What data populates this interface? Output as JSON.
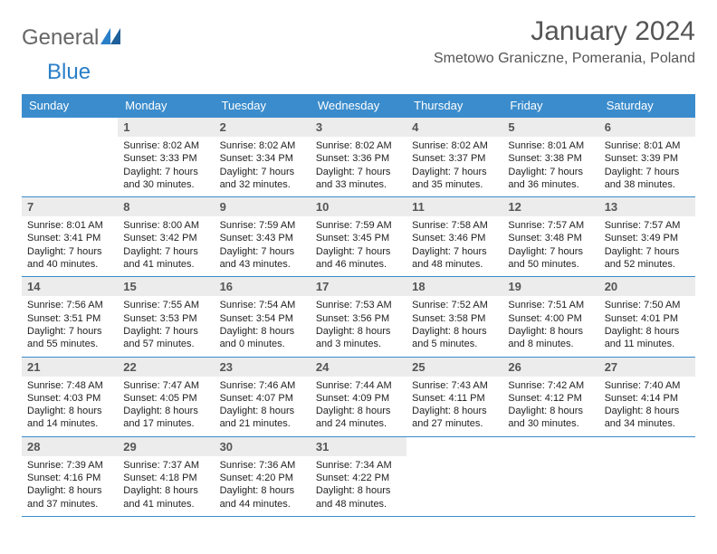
{
  "logo": {
    "text1": "General",
    "text2": "Blue"
  },
  "title": "January 2024",
  "location": "Smetowo Graniczne, Pomerania, Poland",
  "colors": {
    "header_bg": "#3b8ccc",
    "header_text": "#ffffff",
    "daynum_bg": "#ececec",
    "daynum_text": "#555555",
    "body_text": "#222222",
    "rule": "#3b8ccc",
    "logo_gray": "#666666",
    "logo_blue": "#2a7fc9",
    "title_color": "#555555"
  },
  "headers": [
    "Sunday",
    "Monday",
    "Tuesday",
    "Wednesday",
    "Thursday",
    "Friday",
    "Saturday"
  ],
  "layout": {
    "first_weekday_index": 1,
    "last_day": 31
  },
  "days": {
    "1": {
      "sunrise": "8:02 AM",
      "sunset": "3:33 PM",
      "daylight": "7 hours and 30 minutes."
    },
    "2": {
      "sunrise": "8:02 AM",
      "sunset": "3:34 PM",
      "daylight": "7 hours and 32 minutes."
    },
    "3": {
      "sunrise": "8:02 AM",
      "sunset": "3:36 PM",
      "daylight": "7 hours and 33 minutes."
    },
    "4": {
      "sunrise": "8:02 AM",
      "sunset": "3:37 PM",
      "daylight": "7 hours and 35 minutes."
    },
    "5": {
      "sunrise": "8:01 AM",
      "sunset": "3:38 PM",
      "daylight": "7 hours and 36 minutes."
    },
    "6": {
      "sunrise": "8:01 AM",
      "sunset": "3:39 PM",
      "daylight": "7 hours and 38 minutes."
    },
    "7": {
      "sunrise": "8:01 AM",
      "sunset": "3:41 PM",
      "daylight": "7 hours and 40 minutes."
    },
    "8": {
      "sunrise": "8:00 AM",
      "sunset": "3:42 PM",
      "daylight": "7 hours and 41 minutes."
    },
    "9": {
      "sunrise": "7:59 AM",
      "sunset": "3:43 PM",
      "daylight": "7 hours and 43 minutes."
    },
    "10": {
      "sunrise": "7:59 AM",
      "sunset": "3:45 PM",
      "daylight": "7 hours and 46 minutes."
    },
    "11": {
      "sunrise": "7:58 AM",
      "sunset": "3:46 PM",
      "daylight": "7 hours and 48 minutes."
    },
    "12": {
      "sunrise": "7:57 AM",
      "sunset": "3:48 PM",
      "daylight": "7 hours and 50 minutes."
    },
    "13": {
      "sunrise": "7:57 AM",
      "sunset": "3:49 PM",
      "daylight": "7 hours and 52 minutes."
    },
    "14": {
      "sunrise": "7:56 AM",
      "sunset": "3:51 PM",
      "daylight": "7 hours and 55 minutes."
    },
    "15": {
      "sunrise": "7:55 AM",
      "sunset": "3:53 PM",
      "daylight": "7 hours and 57 minutes."
    },
    "16": {
      "sunrise": "7:54 AM",
      "sunset": "3:54 PM",
      "daylight": "8 hours and 0 minutes."
    },
    "17": {
      "sunrise": "7:53 AM",
      "sunset": "3:56 PM",
      "daylight": "8 hours and 3 minutes."
    },
    "18": {
      "sunrise": "7:52 AM",
      "sunset": "3:58 PM",
      "daylight": "8 hours and 5 minutes."
    },
    "19": {
      "sunrise": "7:51 AM",
      "sunset": "4:00 PM",
      "daylight": "8 hours and 8 minutes."
    },
    "20": {
      "sunrise": "7:50 AM",
      "sunset": "4:01 PM",
      "daylight": "8 hours and 11 minutes."
    },
    "21": {
      "sunrise": "7:48 AM",
      "sunset": "4:03 PM",
      "daylight": "8 hours and 14 minutes."
    },
    "22": {
      "sunrise": "7:47 AM",
      "sunset": "4:05 PM",
      "daylight": "8 hours and 17 minutes."
    },
    "23": {
      "sunrise": "7:46 AM",
      "sunset": "4:07 PM",
      "daylight": "8 hours and 21 minutes."
    },
    "24": {
      "sunrise": "7:44 AM",
      "sunset": "4:09 PM",
      "daylight": "8 hours and 24 minutes."
    },
    "25": {
      "sunrise": "7:43 AM",
      "sunset": "4:11 PM",
      "daylight": "8 hours and 27 minutes."
    },
    "26": {
      "sunrise": "7:42 AM",
      "sunset": "4:12 PM",
      "daylight": "8 hours and 30 minutes."
    },
    "27": {
      "sunrise": "7:40 AM",
      "sunset": "4:14 PM",
      "daylight": "8 hours and 34 minutes."
    },
    "28": {
      "sunrise": "7:39 AM",
      "sunset": "4:16 PM",
      "daylight": "8 hours and 37 minutes."
    },
    "29": {
      "sunrise": "7:37 AM",
      "sunset": "4:18 PM",
      "daylight": "8 hours and 41 minutes."
    },
    "30": {
      "sunrise": "7:36 AM",
      "sunset": "4:20 PM",
      "daylight": "8 hours and 44 minutes."
    },
    "31": {
      "sunrise": "7:34 AM",
      "sunset": "4:22 PM",
      "daylight": "8 hours and 48 minutes."
    }
  },
  "label_prefixes": {
    "sunrise": "Sunrise: ",
    "sunset": "Sunset: ",
    "daylight": "Daylight: "
  }
}
